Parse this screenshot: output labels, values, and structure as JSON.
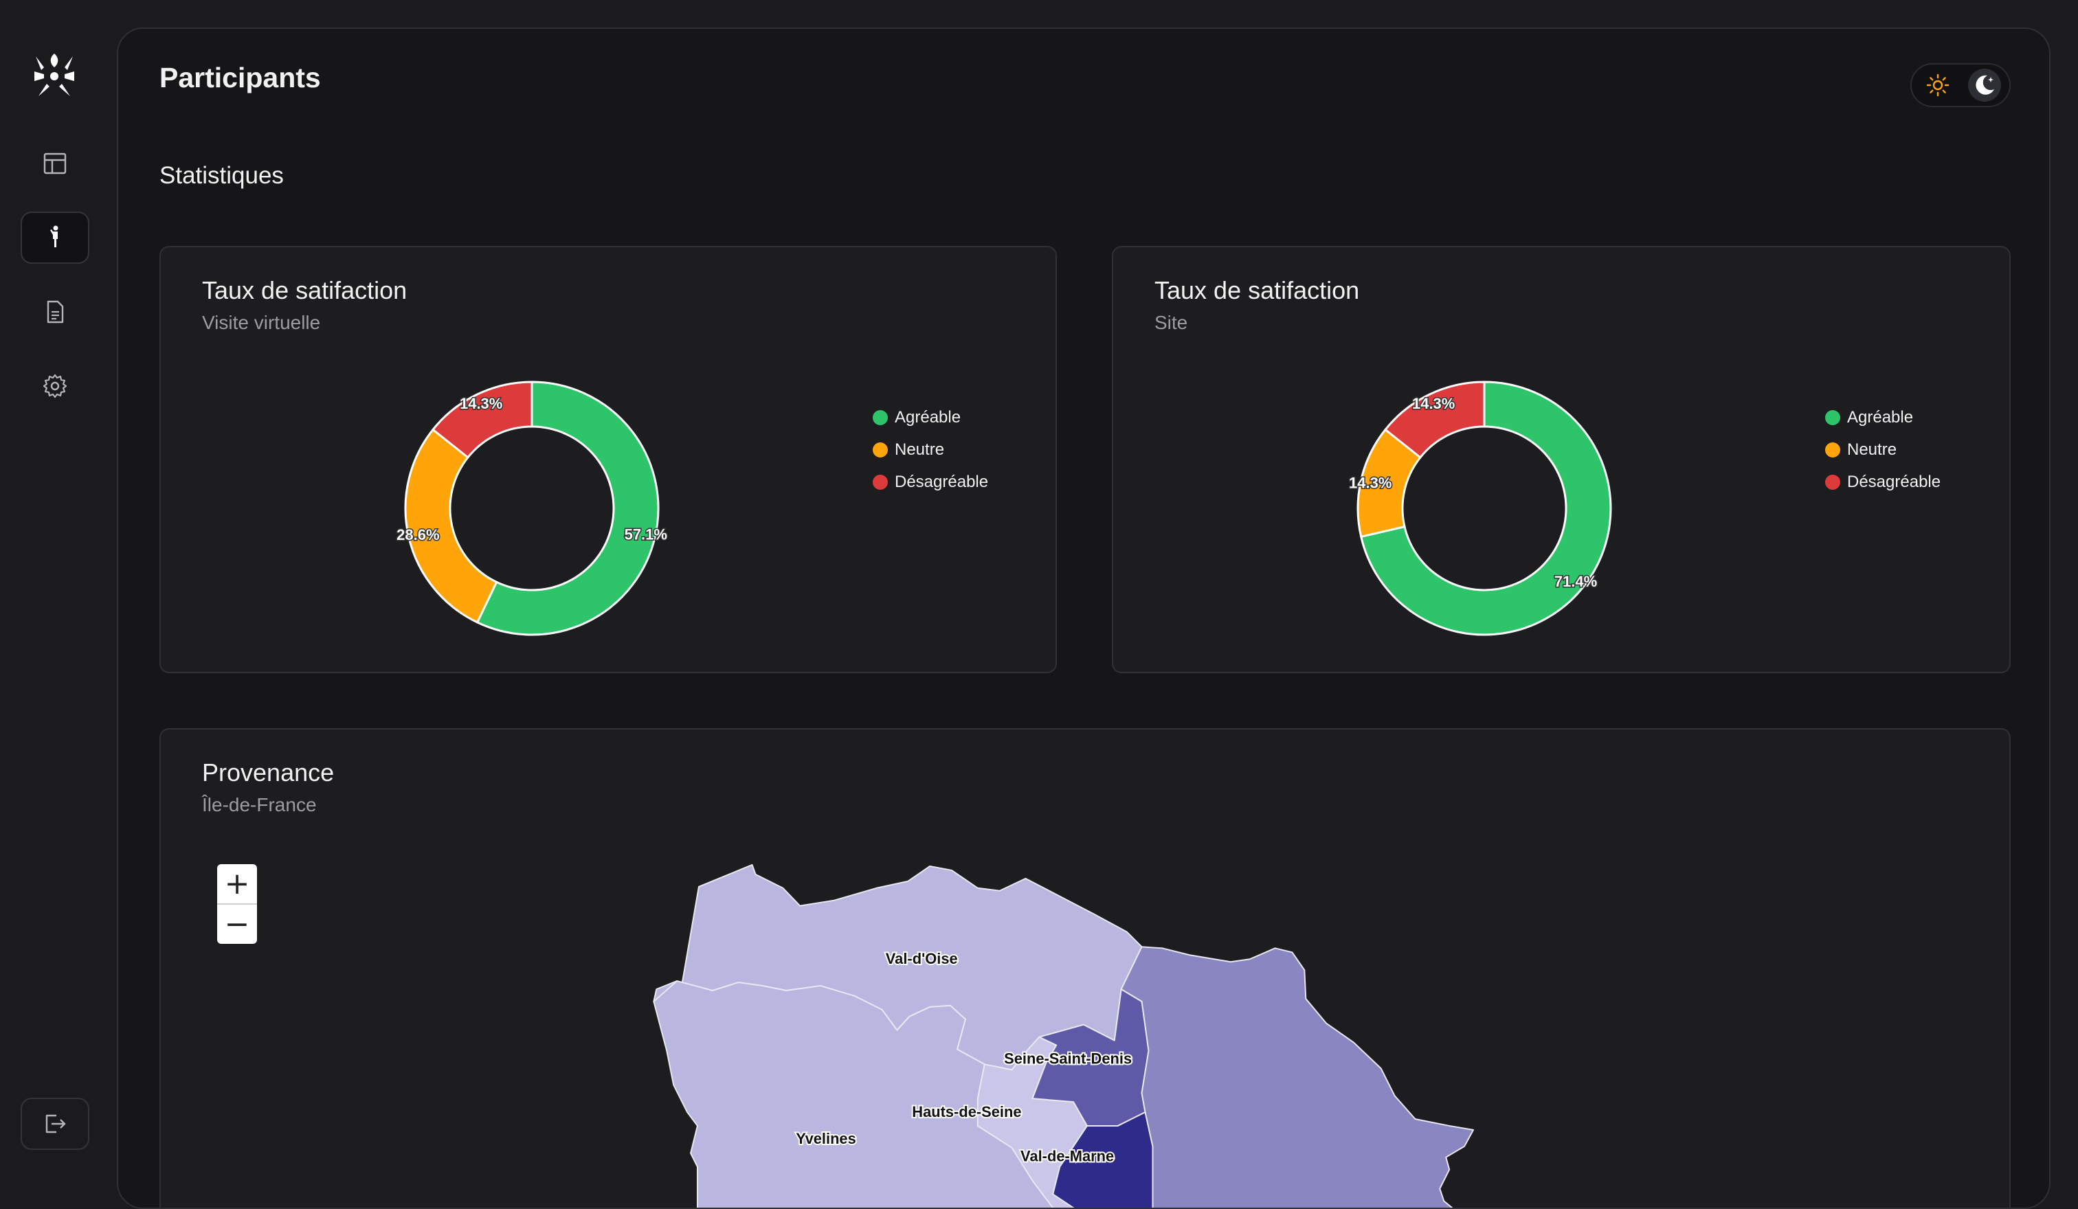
{
  "app": {
    "title": "Participants"
  },
  "sidebar": {
    "items": [
      {
        "name": "dashboard",
        "icon": "layout-icon"
      },
      {
        "name": "participants",
        "icon": "person-icon",
        "active": true
      },
      {
        "name": "documents",
        "icon": "document-icon"
      },
      {
        "name": "settings",
        "icon": "gear-icon"
      }
    ],
    "logout_icon": "logout-icon"
  },
  "theme": {
    "options": [
      "light",
      "dark"
    ],
    "selected": "dark"
  },
  "section": {
    "title": "Statistiques"
  },
  "colors": {
    "agreable": "#2ec56a",
    "neutre": "#ffa50a",
    "desagreable": "#dd3b3b"
  },
  "cards": [
    {
      "title": "Taux de satifaction",
      "subtitle": "Visite virtuelle",
      "legend": [
        "Agréable",
        "Neutre",
        "Désagréable"
      ],
      "chart_data": {
        "type": "pie",
        "categories": [
          "Agréable",
          "Neutre",
          "Désagréable"
        ],
        "values": [
          57.1,
          28.6,
          14.3
        ],
        "labels": [
          "57.1%",
          "28.6%",
          "14.3%"
        ]
      }
    },
    {
      "title": "Taux de satifaction",
      "subtitle": "Site",
      "legend": [
        "Agréable",
        "Neutre",
        "Désagréable"
      ],
      "chart_data": {
        "type": "pie",
        "categories": [
          "Agréable",
          "Neutre",
          "Désagréable"
        ],
        "values": [
          71.4,
          14.3,
          14.3
        ],
        "labels": [
          "71.4%",
          "14.3%",
          "14.3%"
        ]
      }
    }
  ],
  "provenance": {
    "title": "Provenance",
    "subtitle": "Île-de-France",
    "zoom": {
      "in": "+",
      "out": "−"
    },
    "regions": [
      "Val-d'Oise",
      "Seine-Saint-Denis",
      "Hauts-de-Seine",
      "Yvelines",
      "Val-de-Marne"
    ]
  }
}
